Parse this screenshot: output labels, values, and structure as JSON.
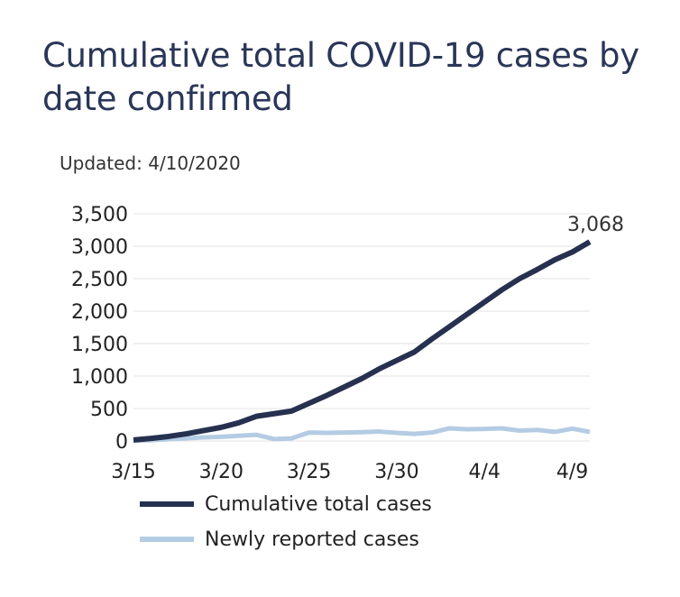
{
  "title": "Cumulative total COVID-19 cases by date confirmed",
  "updated": "Updated: 4/10/2020",
  "colors": {
    "cumulative": "#26304f",
    "new": "#b4cce3",
    "title": "#2a3658"
  },
  "legend": [
    "Cumulative total cases",
    "Newly reported cases"
  ],
  "chart_data": {
    "type": "line",
    "title": "Cumulative total COVID-19 cases by date confirmed",
    "x": [
      "3/15",
      "3/16",
      "3/17",
      "3/18",
      "3/19",
      "3/20",
      "3/21",
      "3/22",
      "3/23",
      "3/24",
      "3/25",
      "3/26",
      "3/27",
      "3/28",
      "3/29",
      "3/30",
      "3/31",
      "4/1",
      "4/2",
      "4/3",
      "4/4",
      "4/5",
      "4/6",
      "4/7",
      "4/8",
      "4/9",
      "4/10"
    ],
    "xticks": [
      "3/15",
      "3/20",
      "3/25",
      "3/30",
      "4/4",
      "4/9"
    ],
    "yticks": [
      "0",
      "500",
      "1,000",
      "1,500",
      "2,000",
      "2,500",
      "3,000",
      "3,500"
    ],
    "ylim": [
      0,
      3500
    ],
    "grid": true,
    "legend_position": "bottom",
    "annotation": {
      "x": "4/10",
      "text": "3,068"
    },
    "series": [
      {
        "name": "Cumulative total cases",
        "values": [
          15,
          40,
          70,
          110,
          160,
          210,
          280,
          380,
          420,
          460,
          580,
          700,
          830,
          960,
          1110,
          1240,
          1370,
          1570,
          1760,
          1950,
          2140,
          2330,
          2500,
          2640,
          2790,
          2910,
          3068
        ]
      },
      {
        "name": "Newly reported cases",
        "values": [
          5,
          12,
          28,
          42,
          55,
          65,
          80,
          95,
          30,
          40,
          130,
          125,
          130,
          135,
          145,
          125,
          110,
          130,
          195,
          180,
          185,
          195,
          160,
          170,
          140,
          190,
          140
        ]
      }
    ]
  }
}
